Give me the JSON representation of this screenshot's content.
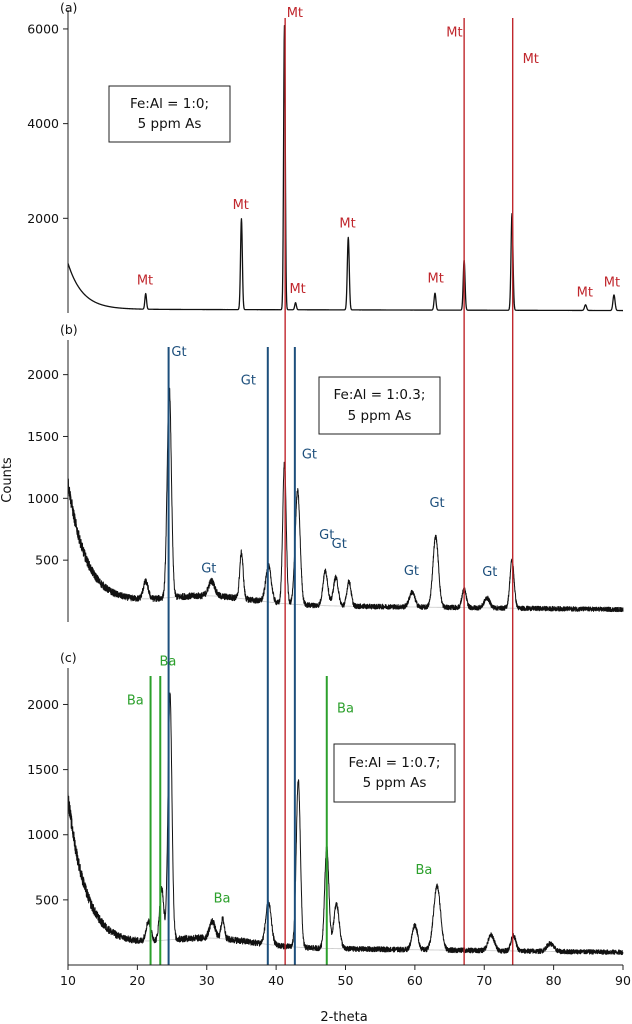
{
  "colors": {
    "Mt": "#c0272d",
    "Gt": "#1d4f7c",
    "Ba": "#2ca02c",
    "trace": "#111111",
    "baseline": "#c8c8c8"
  },
  "chart_data": {
    "type": "line",
    "xlabel": "2-theta",
    "ylabel": "Counts",
    "xlim": [
      10,
      90
    ],
    "x_ticks": [
      10,
      20,
      30,
      40,
      50,
      60,
      70,
      80,
      90
    ],
    "shared_phase_lines": [
      {
        "phase": "Mt",
        "x": [
          41.3,
          67.1,
          74.1
        ],
        "from_panel": 0,
        "to_panel": 2
      },
      {
        "phase": "Gt",
        "x": [
          24.5,
          38.8,
          42.7
        ],
        "from_panel": 1,
        "to_panel": 2
      },
      {
        "phase": "Ba",
        "x": [
          21.9,
          23.3,
          47.3
        ],
        "from_panel": 2,
        "to_panel": 2
      }
    ],
    "panels": [
      {
        "tag": "(a)",
        "condition_lines": [
          "Fe:Al = 1:0;",
          "5 ppm As"
        ],
        "ylim": [
          0,
          6400
        ],
        "y_ticks": [
          2000,
          4000,
          6000
        ],
        "noise": 0.25,
        "background": {
          "start": 1050,
          "tail": 80,
          "decay": 2.1,
          "hump": 0
        },
        "peaks": [
          {
            "x": 21.2,
            "h": 330,
            "w": 0.12
          },
          {
            "x": 35.0,
            "h": 1920,
            "w": 0.13
          },
          {
            "x": 41.2,
            "h": 6000,
            "w": 0.12
          },
          {
            "x": 42.8,
            "h": 150,
            "w": 0.12
          },
          {
            "x": 50.4,
            "h": 1530,
            "w": 0.14
          },
          {
            "x": 62.9,
            "h": 360,
            "w": 0.13
          },
          {
            "x": 67.1,
            "h": 1060,
            "w": 0.13
          },
          {
            "x": 74.0,
            "h": 2040,
            "w": 0.14
          },
          {
            "x": 84.6,
            "h": 120,
            "w": 0.15
          },
          {
            "x": 88.7,
            "h": 330,
            "w": 0.15
          }
        ],
        "labels": [
          {
            "text": "Mt",
            "phase": "Mt",
            "x": 21.1,
            "y": 600
          },
          {
            "text": "Mt",
            "phase": "Mt",
            "x": 34.9,
            "y": 2200
          },
          {
            "text": "Mt",
            "phase": "Mt",
            "x": 42.7,
            "y": 6250
          },
          {
            "text": "Mt",
            "phase": "Mt",
            "x": 43.1,
            "y": 420
          },
          {
            "text": "Mt",
            "phase": "Mt",
            "x": 50.3,
            "y": 1810
          },
          {
            "text": "Mt",
            "phase": "Mt",
            "x": 63.0,
            "y": 640
          },
          {
            "text": "Mt",
            "phase": "Mt",
            "x": 65.7,
            "y": 5840
          },
          {
            "text": "Mt",
            "phase": "Mt",
            "x": 76.7,
            "y": 5280
          },
          {
            "text": "Mt",
            "phase": "Mt",
            "x": 84.5,
            "y": 350
          },
          {
            "text": "Mt",
            "phase": "Mt",
            "x": 88.4,
            "y": 560
          }
        ]
      },
      {
        "tag": "(b)",
        "condition_lines": [
          "Fe:Al = 1:0.3;",
          "5 ppm As"
        ],
        "ylim": [
          0,
          2280
        ],
        "y_ticks": [
          500,
          1000,
          1500,
          2000
        ],
        "noise": 22,
        "background": {
          "start": 1130,
          "tail": 155,
          "decay": 2.6,
          "hump": 70
        },
        "peaks": [
          {
            "x": 21.2,
            "h": 140,
            "w": 0.35
          },
          {
            "x": 24.6,
            "h": 1700,
            "w": 0.3
          },
          {
            "x": 30.7,
            "h": 120,
            "w": 0.45
          },
          {
            "x": 35.0,
            "h": 370,
            "w": 0.25
          },
          {
            "x": 38.9,
            "h": 290,
            "w": 0.4
          },
          {
            "x": 41.2,
            "h": 1140,
            "w": 0.25
          },
          {
            "x": 43.1,
            "h": 920,
            "w": 0.35
          },
          {
            "x": 47.1,
            "h": 280,
            "w": 0.35
          },
          {
            "x": 48.6,
            "h": 230,
            "w": 0.35
          },
          {
            "x": 50.5,
            "h": 200,
            "w": 0.3
          },
          {
            "x": 59.6,
            "h": 120,
            "w": 0.4
          },
          {
            "x": 63.0,
            "h": 570,
            "w": 0.4
          },
          {
            "x": 67.1,
            "h": 150,
            "w": 0.3
          },
          {
            "x": 70.4,
            "h": 80,
            "w": 0.4
          },
          {
            "x": 74.0,
            "h": 390,
            "w": 0.3
          }
        ],
        "labels": [
          {
            "text": "Gt",
            "phase": "Gt",
            "x": 26.0,
            "y": 2150
          },
          {
            "text": "Gt",
            "phase": "Gt",
            "x": 36.0,
            "y": 1920
          },
          {
            "text": "Gt",
            "phase": "Gt",
            "x": 44.8,
            "y": 1320
          },
          {
            "text": "Gt",
            "phase": "Gt",
            "x": 30.3,
            "y": 400
          },
          {
            "text": "Gt",
            "phase": "Gt",
            "x": 47.3,
            "y": 670
          },
          {
            "text": "Gt",
            "phase": "Gt",
            "x": 49.1,
            "y": 600
          },
          {
            "text": "Gt",
            "phase": "Gt",
            "x": 59.5,
            "y": 380
          },
          {
            "text": "Gt",
            "phase": "Gt",
            "x": 63.2,
            "y": 930
          },
          {
            "text": "Gt",
            "phase": "Gt",
            "x": 70.8,
            "y": 370
          }
        ]
      },
      {
        "tag": "(c)",
        "condition_lines": [
          "Fe:Al = 1:0.7;",
          "5 ppm As"
        ],
        "ylim": [
          0,
          2280
        ],
        "y_ticks": [
          500,
          1000,
          1500,
          2000
        ],
        "noise": 22,
        "background": {
          "start": 1290,
          "tail": 150,
          "decay": 2.6,
          "hump": 70
        },
        "peaks": [
          {
            "x": 21.6,
            "h": 150,
            "w": 0.35
          },
          {
            "x": 23.5,
            "h": 400,
            "w": 0.3
          },
          {
            "x": 24.7,
            "h": 1880,
            "w": 0.28
          },
          {
            "x": 30.8,
            "h": 130,
            "w": 0.4
          },
          {
            "x": 32.3,
            "h": 150,
            "w": 0.25
          },
          {
            "x": 38.9,
            "h": 320,
            "w": 0.4
          },
          {
            "x": 43.2,
            "h": 1280,
            "w": 0.3
          },
          {
            "x": 47.3,
            "h": 780,
            "w": 0.3
          },
          {
            "x": 48.7,
            "h": 340,
            "w": 0.4
          },
          {
            "x": 60.0,
            "h": 190,
            "w": 0.4
          },
          {
            "x": 63.2,
            "h": 490,
            "w": 0.5
          },
          {
            "x": 71.0,
            "h": 120,
            "w": 0.45
          },
          {
            "x": 74.2,
            "h": 120,
            "w": 0.35
          },
          {
            "x": 79.5,
            "h": 60,
            "w": 0.5
          }
        ],
        "labels": [
          {
            "text": "Ba",
            "phase": "Ba",
            "x": 19.7,
            "y": 2000
          },
          {
            "text": "Ba",
            "phase": "Ba",
            "x": 24.4,
            "y": 2300
          },
          {
            "text": "Ba",
            "phase": "Ba",
            "x": 50.0,
            "y": 1940
          },
          {
            "text": "Ba",
            "phase": "Ba",
            "x": 32.2,
            "y": 480
          },
          {
            "text": "Ba",
            "phase": "Ba",
            "x": 61.3,
            "y": 700
          }
        ]
      }
    ]
  }
}
